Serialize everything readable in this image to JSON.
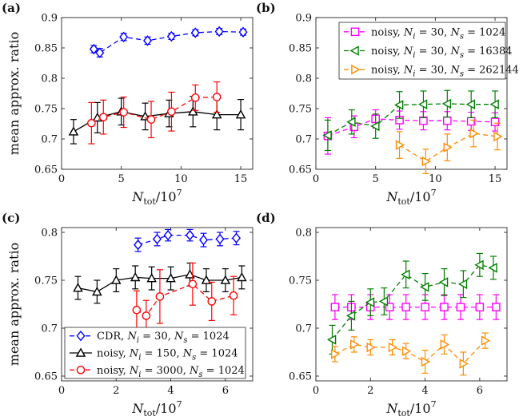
{
  "chart_data": [
    {
      "panel": "(a)",
      "type": "line",
      "xlabel": "N_tot/10^7",
      "ylabel": "mean approx. ratio",
      "xlim": [
        0,
        16
      ],
      "ylim": [
        0.65,
        0.9
      ],
      "xticks": [
        "0",
        "5",
        "10",
        "15"
      ],
      "xtick_values": [
        0,
        5,
        10,
        15
      ],
      "yticks": [
        "0.65",
        "0.7",
        "0.75",
        "0.8",
        "0.85",
        "0.9"
      ],
      "ytick_values": [
        0.65,
        0.7,
        0.75,
        0.8,
        0.85,
        0.9
      ],
      "grid": false,
      "legend": null,
      "series": [
        {
          "name": "CDR, N_i = 30, N_s = 1024",
          "color": "#0000ff",
          "marker": "diamond",
          "dashed": true,
          "x": [
            2.7,
            3.2,
            5.2,
            7.2,
            9.2,
            11.2,
            13.2,
            15.2
          ],
          "y": [
            0.848,
            0.842,
            0.868,
            0.862,
            0.869,
            0.875,
            0.877,
            0.876
          ],
          "err": [
            0.006,
            0.007,
            0.006,
            0.006,
            0.005,
            0.005,
            0.005,
            0.005
          ]
        },
        {
          "name": "noisy, N_i = 150, N_s = 1024",
          "color": "#000000",
          "marker": "triangle-up",
          "dashed": false,
          "x": [
            1.0,
            3.0,
            5.0,
            7.0,
            9.0,
            11.0,
            13.0,
            15.0
          ],
          "y": [
            0.712,
            0.735,
            0.745,
            0.737,
            0.742,
            0.745,
            0.74,
            0.74
          ],
          "err": [
            0.02,
            0.025,
            0.022,
            0.022,
            0.022,
            0.025,
            0.025,
            0.025
          ]
        },
        {
          "name": "noisy, N_i = 3000, N_s = 1024",
          "color": "#ff0000",
          "marker": "circle",
          "dashed": true,
          "x": [
            2.5,
            3.5,
            5.2,
            7.5,
            9.2,
            11.2,
            13.0
          ],
          "y": [
            0.726,
            0.736,
            0.744,
            0.732,
            0.745,
            0.768,
            0.769
          ],
          "err": [
            0.034,
            0.028,
            0.025,
            0.03,
            0.032,
            0.021,
            0.025
          ]
        }
      ]
    },
    {
      "panel": "(b)",
      "type": "line",
      "xlabel": "N_tot/10^7",
      "ylabel": "",
      "xlim": [
        0,
        16
      ],
      "ylim": [
        0.65,
        0.9
      ],
      "xticks": [
        "0",
        "5",
        "10",
        "15"
      ],
      "xtick_values": [
        0,
        5,
        10,
        15
      ],
      "yticks": [
        "0.65",
        "0.7",
        "0.75",
        "0.8",
        "0.85",
        "0.9"
      ],
      "ytick_values": [
        0.65,
        0.7,
        0.75,
        0.8,
        0.85,
        0.9
      ],
      "grid": false,
      "legend": "top-right",
      "series": [
        {
          "name": "noisy, N_i = 30, N_s = 1024",
          "color": "#ff00ff",
          "marker": "square",
          "dashed": true,
          "x": [
            1.0,
            3.2,
            5.0,
            7.0,
            9.0,
            11.0,
            13.0,
            15.0
          ],
          "y": [
            0.705,
            0.72,
            0.733,
            0.731,
            0.73,
            0.73,
            0.729,
            0.728
          ],
          "err": [
            0.03,
            0.018,
            0.015,
            0.015,
            0.015,
            0.015,
            0.015,
            0.015
          ]
        },
        {
          "name": "noisy, N_i = 30, N_s = 16384",
          "color": "#008000",
          "marker": "triangle-left",
          "dashed": true,
          "x": [
            1.0,
            3.0,
            5.0,
            7.0,
            9.0,
            11.0,
            13.0,
            15.0
          ],
          "y": [
            0.706,
            0.728,
            0.721,
            0.756,
            0.757,
            0.758,
            0.757,
            0.757
          ],
          "err": [
            0.025,
            0.02,
            0.02,
            0.022,
            0.022,
            0.022,
            0.022,
            0.022
          ]
        },
        {
          "name": "noisy, N_i = 30, N_s = 262144",
          "color": "#ff8c00",
          "marker": "triangle-right",
          "dashed": true,
          "x": [
            7.0,
            9.2,
            11.0,
            13.2,
            15.2
          ],
          "y": [
            0.69,
            0.663,
            0.686,
            0.709,
            0.704
          ],
          "err": [
            0.022,
            0.02,
            0.022,
            0.022,
            0.022
          ]
        }
      ]
    },
    {
      "panel": "(c)",
      "type": "line",
      "xlabel": "N_tot/10^7",
      "ylabel": "mean approx. ratio",
      "xlim": [
        0,
        7
      ],
      "ylim": [
        0.645,
        0.805
      ],
      "xticks": [
        "0",
        "2",
        "4",
        "6"
      ],
      "xtick_values": [
        0,
        2,
        4,
        6
      ],
      "yticks": [
        "0.65",
        "0.7",
        "0.75",
        "0.8"
      ],
      "ytick_values": [
        0.65,
        0.7,
        0.75,
        0.8
      ],
      "grid": false,
      "legend": "bottom-left",
      "series": [
        {
          "name": "CDR, N_i = 30, N_s = 1024",
          "color": "#0000ff",
          "marker": "diamond",
          "dashed": true,
          "x": [
            2.8,
            3.5,
            3.9,
            4.7,
            5.2,
            5.8,
            6.4
          ],
          "y": [
            0.787,
            0.793,
            0.797,
            0.797,
            0.792,
            0.793,
            0.794
          ],
          "err": [
            0.007,
            0.007,
            0.006,
            0.006,
            0.007,
            0.007,
            0.007
          ]
        },
        {
          "name": "noisy, N_i = 150, N_s = 1024",
          "color": "#000000",
          "marker": "triangle-up",
          "dashed": false,
          "x": [
            0.6,
            1.3,
            2.0,
            2.7,
            3.3,
            4.0,
            4.7,
            5.3,
            6.0,
            6.6
          ],
          "y": [
            0.742,
            0.738,
            0.75,
            0.753,
            0.752,
            0.752,
            0.756,
            0.75,
            0.75,
            0.753
          ],
          "err": [
            0.012,
            0.012,
            0.012,
            0.012,
            0.012,
            0.012,
            0.012,
            0.012,
            0.012,
            0.012
          ]
        },
        {
          "name": "noisy, N_i = 3000, N_s = 1024",
          "color": "#ff0000",
          "marker": "circle",
          "dashed": true,
          "x": [
            2.75,
            3.1,
            3.6,
            4.8,
            5.5,
            6.3
          ],
          "y": [
            0.719,
            0.713,
            0.733,
            0.746,
            0.728,
            0.734
          ],
          "err": [
            0.02,
            0.016,
            0.028,
            0.022,
            0.02,
            0.02
          ]
        }
      ]
    },
    {
      "panel": "(d)",
      "type": "line",
      "xlabel": "N_tot/10^7",
      "ylabel": "",
      "xlim": [
        0,
        7
      ],
      "ylim": [
        0.645,
        0.805
      ],
      "xticks": [
        "0",
        "2",
        "4",
        "6"
      ],
      "xtick_values": [
        0,
        2,
        4,
        6
      ],
      "yticks": [
        "0.65",
        "0.7",
        "0.75",
        "0.8"
      ],
      "ytick_values": [
        0.65,
        0.7,
        0.75,
        0.8
      ],
      "grid": false,
      "legend": null,
      "series": [
        {
          "name": "noisy, N_i = 30, N_s = 1024",
          "color": "#ff00ff",
          "marker": "square",
          "dashed": true,
          "x": [
            0.7,
            1.3,
            2.0,
            2.7,
            3.3,
            4.0,
            4.7,
            5.3,
            6.0,
            6.6
          ],
          "y": [
            0.722,
            0.722,
            0.722,
            0.722,
            0.722,
            0.722,
            0.722,
            0.722,
            0.722,
            0.722
          ],
          "err": [
            0.013,
            0.013,
            0.013,
            0.013,
            0.013,
            0.013,
            0.013,
            0.013,
            0.013,
            0.013
          ]
        },
        {
          "name": "noisy, N_i = 30, N_s = 16384",
          "color": "#008000",
          "marker": "triangle-left",
          "dashed": true,
          "x": [
            0.6,
            1.3,
            2.0,
            2.5,
            3.3,
            4.0,
            4.7,
            5.4,
            6.0,
            6.5
          ],
          "y": [
            0.688,
            0.713,
            0.727,
            0.728,
            0.756,
            0.743,
            0.748,
            0.746,
            0.766,
            0.763
          ],
          "err": [
            0.015,
            0.015,
            0.014,
            0.014,
            0.014,
            0.014,
            0.014,
            0.014,
            0.012,
            0.012
          ]
        },
        {
          "name": "noisy, N_i = 30, N_s = 262144",
          "color": "#ff8c00",
          "marker": "triangle-right",
          "dashed": true,
          "x": [
            0.7,
            1.4,
            2.0,
            2.8,
            3.3,
            4.0,
            4.7,
            5.4,
            6.2
          ],
          "y": [
            0.673,
            0.683,
            0.68,
            0.68,
            0.676,
            0.665,
            0.683,
            0.663,
            0.687
          ],
          "err": [
            0.008,
            0.008,
            0.008,
            0.008,
            0.008,
            0.012,
            0.01,
            0.012,
            0.008
          ]
        }
      ]
    }
  ]
}
